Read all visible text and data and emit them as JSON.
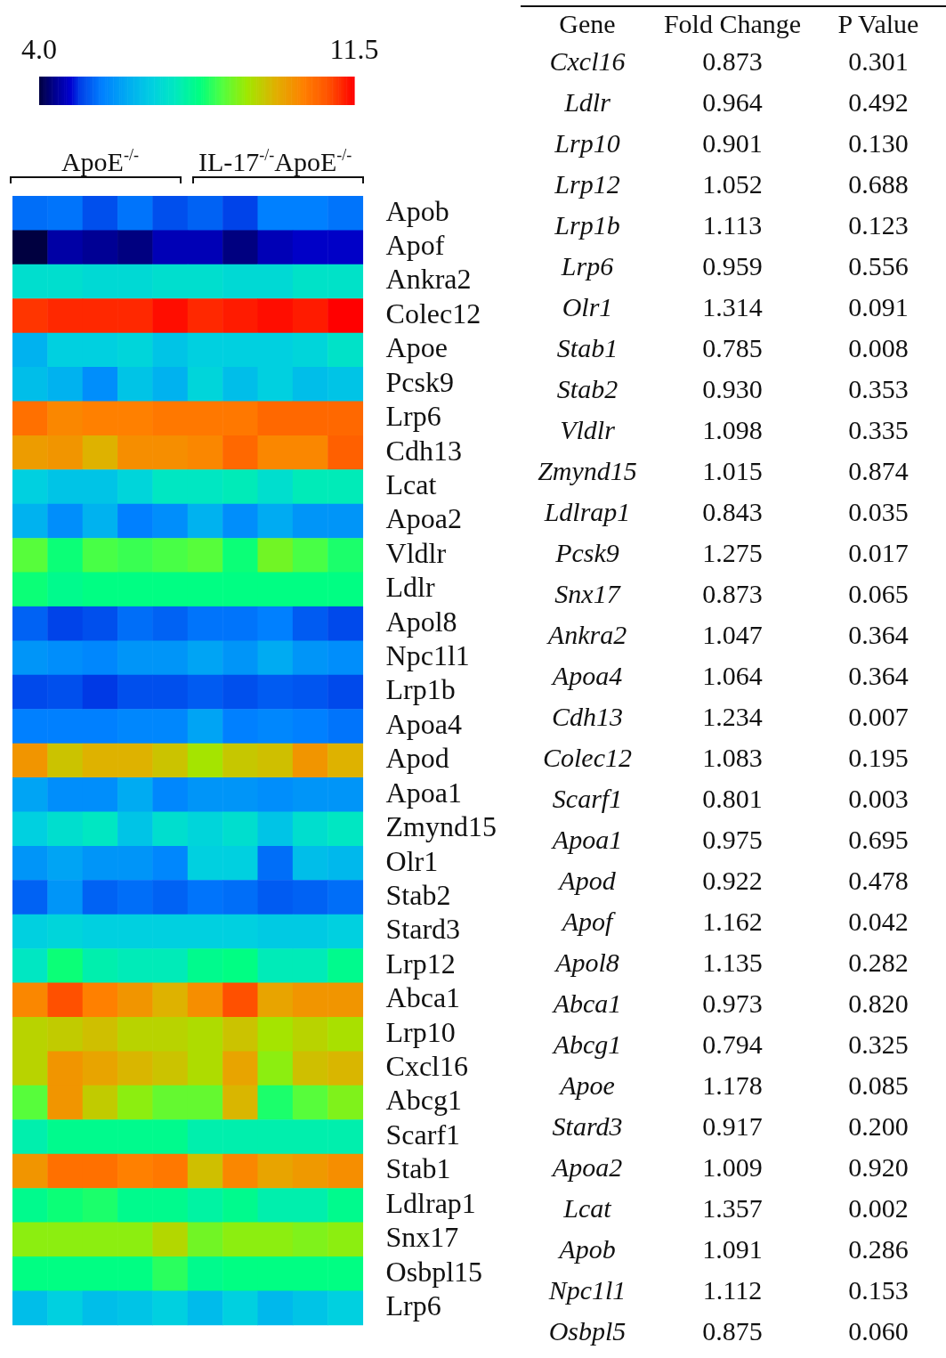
{
  "chart_data": [
    {
      "type": "heatmap",
      "annotations": [
        "ApoE$^{-/-}$",
        "IL-17$^{-/-}$ApoE$^{-/-}$"
      ],
      "categories": [
        null,
        null,
        null,
        null,
        null,
        null,
        null,
        null,
        null,
        null
      ],
      "y_categories": [
        "Apob",
        "Apof",
        "Ankra2",
        "Colec12",
        "Apoe",
        "Pcsk9",
        "Lrp6",
        "Cdh13",
        "Lcat",
        "Apoa2",
        "Vldlr",
        "Ldlr",
        "Apol8",
        "Npc1l1",
        "Lrp1b",
        "Apoa4",
        "Apod",
        "Apoa1",
        "Zmynd15",
        "Olr1",
        "Stab2",
        "Stard3",
        "Lrp12",
        "Abca1",
        "Lrp10",
        "Cxcl16",
        "Abcg1",
        "Scarf1",
        "Stab1",
        "Ldlrap1",
        "Snx17",
        "Osbpl15",
        "Lrp6"
      ],
      "cells": [
        [
          5.35,
          5.4,
          5.1,
          5.4,
          5.1,
          5.25,
          5.0,
          5.5,
          5.5,
          5.4
        ],
        [
          4.0,
          4.5,
          4.4,
          4.3,
          4.6,
          4.6,
          4.3,
          4.6,
          4.7,
          4.7
        ],
        [
          7.0,
          7.0,
          6.9,
          6.9,
          7.0,
          7.0,
          6.9,
          6.9,
          7.1,
          7.1
        ],
        [
          11.1,
          11.2,
          11.2,
          11.2,
          11.4,
          11.2,
          11.3,
          11.4,
          11.3,
          11.5
        ],
        [
          6.2,
          6.7,
          6.7,
          6.8,
          6.5,
          6.7,
          6.7,
          6.7,
          6.8,
          7.1
        ],
        [
          6.4,
          6.2,
          5.7,
          6.5,
          6.2,
          6.8,
          6.4,
          6.7,
          6.4,
          6.5
        ],
        [
          10.5,
          10.2,
          10.3,
          10.3,
          10.4,
          10.4,
          10.4,
          10.6,
          10.6,
          10.6
        ],
        [
          9.9,
          10.0,
          9.6,
          10.1,
          10.1,
          10.2,
          10.6,
          10.2,
          10.2,
          10.7
        ],
        [
          6.7,
          6.5,
          6.5,
          6.8,
          7.2,
          7.2,
          7.3,
          7.0,
          7.3,
          7.3
        ],
        [
          6.2,
          5.7,
          6.2,
          5.5,
          5.7,
          6.2,
          5.7,
          6.1,
          5.8,
          5.8
        ],
        [
          8.4,
          7.9,
          8.3,
          8.2,
          8.3,
          8.4,
          7.9,
          8.6,
          8.3,
          8.0
        ],
        [
          7.9,
          7.7,
          7.8,
          7.8,
          7.8,
          7.8,
          7.8,
          7.8,
          7.8,
          7.8
        ],
        [
          5.25,
          5.0,
          5.1,
          5.35,
          5.25,
          5.4,
          5.4,
          5.5,
          5.2,
          5.05
        ],
        [
          5.8,
          5.7,
          5.6,
          5.8,
          5.8,
          6.0,
          5.8,
          6.1,
          5.8,
          5.7
        ],
        [
          5.05,
          5.1,
          4.95,
          5.1,
          5.1,
          5.2,
          5.1,
          5.2,
          5.15,
          5.05
        ],
        [
          5.5,
          5.5,
          5.5,
          5.6,
          5.6,
          6.0,
          5.5,
          5.6,
          5.5,
          5.4
        ],
        [
          10.0,
          9.4,
          9.6,
          9.6,
          9.4,
          9.0,
          9.35,
          9.45,
          10.0,
          9.6
        ],
        [
          6.0,
          5.7,
          5.7,
          6.1,
          5.6,
          5.8,
          5.8,
          5.7,
          5.8,
          5.8
        ],
        [
          6.7,
          7.0,
          7.2,
          6.5,
          7.0,
          6.8,
          7.0,
          6.5,
          7.0,
          7.2
        ],
        [
          5.8,
          6.0,
          5.8,
          5.8,
          5.6,
          6.7,
          6.7,
          5.35,
          6.4,
          6.3
        ],
        [
          5.25,
          5.8,
          5.25,
          5.35,
          5.25,
          5.4,
          5.35,
          5.2,
          5.25,
          5.35
        ],
        [
          6.7,
          6.8,
          6.7,
          6.7,
          6.7,
          6.7,
          6.7,
          6.6,
          6.6,
          6.7
        ],
        [
          7.2,
          7.9,
          7.4,
          7.3,
          7.3,
          7.7,
          7.8,
          7.3,
          7.3,
          7.7
        ],
        [
          10.2,
          10.9,
          10.3,
          10.0,
          9.6,
          10.1,
          10.9,
          9.8,
          10.0,
          10.0
        ],
        [
          9.2,
          9.3,
          9.45,
          9.2,
          9.2,
          9.1,
          9.4,
          9.0,
          9.2,
          9.05
        ],
        [
          9.2,
          10.0,
          9.8,
          9.55,
          9.4,
          9.1,
          9.8,
          8.8,
          9.45,
          9.55
        ],
        [
          8.4,
          10.0,
          9.3,
          8.8,
          8.5,
          8.5,
          9.55,
          8.0,
          8.4,
          8.7
        ],
        [
          7.4,
          7.7,
          7.7,
          7.7,
          7.7,
          7.4,
          7.4,
          7.4,
          7.4,
          7.4
        ],
        [
          10.0,
          10.5,
          10.5,
          10.3,
          10.4,
          9.45,
          10.2,
          9.8,
          9.95,
          10.1
        ],
        [
          7.7,
          7.9,
          8.0,
          7.7,
          7.7,
          7.5,
          7.7,
          7.4,
          7.4,
          7.7
        ],
        [
          8.8,
          8.8,
          8.8,
          8.8,
          9.15,
          8.6,
          8.8,
          8.8,
          8.7,
          8.8
        ],
        [
          7.8,
          7.8,
          7.8,
          7.8,
          8.1,
          7.7,
          7.8,
          7.8,
          7.8,
          7.8
        ],
        [
          6.4,
          6.7,
          6.4,
          6.5,
          6.7,
          6.35,
          6.7,
          6.3,
          6.5,
          6.7
        ]
      ],
      "clim": [
        4.0,
        11.5
      ],
      "cticks": [
        {
          "value": 4.0,
          "label": "4.0"
        },
        {
          "value": 11.5,
          "label": "11.5"
        }
      ]
    },
    {
      "type": "other",
      "ylabel": "Gene",
      "categories": [
        "Cxcl16",
        "Ldlr",
        "Lrp10",
        "Lrp12",
        "Lrp1b",
        "Lrp6",
        "Olr1",
        "Stab1",
        "Stab2",
        "Vldlr",
        "Zmynd15",
        "Ldlrap1",
        "Pcsk9",
        "Snx17",
        "Ankra2",
        "Apoa4",
        "Cdh13",
        "Colec12",
        "Scarf1",
        "Apoa1",
        "Apod",
        "Apof",
        "Apol8",
        "Abca1",
        "Abcg1",
        "Apoe",
        "Stard3",
        "Apoa2",
        "Lcat",
        "Apob",
        "Npc1l1",
        "Osbpl5"
      ],
      "series": [
        {
          "name": "Fold Change",
          "values": [
            0.873,
            0.964,
            0.901,
            1.052,
            1.113,
            0.959,
            1.314,
            0.785,
            0.93,
            1.098,
            1.015,
            0.843,
            1.275,
            0.873,
            1.047,
            1.064,
            1.234,
            1.083,
            0.801,
            0.975,
            0.922,
            1.162,
            1.135,
            0.973,
            0.794,
            1.178,
            0.917,
            1.009,
            1.357,
            1.091,
            1.112,
            0.875
          ],
          "value_labels": [
            "0.873",
            "0.964",
            "0.901",
            "1.052",
            "1.113",
            "0.959",
            "1.314",
            "0.785",
            "0.930",
            "1.098",
            "1.015",
            "0.843",
            "1.275",
            "0.873",
            "1.047",
            "1.064",
            "1.234",
            "1.083",
            "0.801",
            "0.975",
            "0.922",
            "1.162",
            "1.135",
            "0.973",
            "0.794",
            "1.178",
            "0.917",
            "1.009",
            "1.357",
            "1.091",
            "1.112",
            "0.875"
          ]
        },
        {
          "name": "P Value",
          "values": [
            0.301,
            0.492,
            0.13,
            0.688,
            0.123,
            0.556,
            0.091,
            0.008,
            0.353,
            0.335,
            0.874,
            0.035,
            0.017,
            0.065,
            0.364,
            0.364,
            0.007,
            0.195,
            0.003,
            0.695,
            0.478,
            0.042,
            0.282,
            0.82,
            0.325,
            0.085,
            0.2,
            0.92,
            0.002,
            0.286,
            0.153,
            0.06
          ],
          "value_labels": [
            "0.301",
            "0.492",
            "0.130",
            "0.688",
            "0.123",
            "0.556",
            "0.091",
            "0.008",
            "0.353",
            "0.335",
            "0.874",
            "0.035",
            "0.017",
            "0.065",
            "0.364",
            "0.364",
            "0.007",
            "0.195",
            "0.003",
            "0.695",
            "0.478",
            "0.042",
            "0.282",
            "0.820",
            "0.325",
            "0.085",
            "0.200",
            "0.920",
            "0.002",
            "0.286",
            "0.153",
            "0.060"
          ]
        }
      ]
    }
  ]
}
